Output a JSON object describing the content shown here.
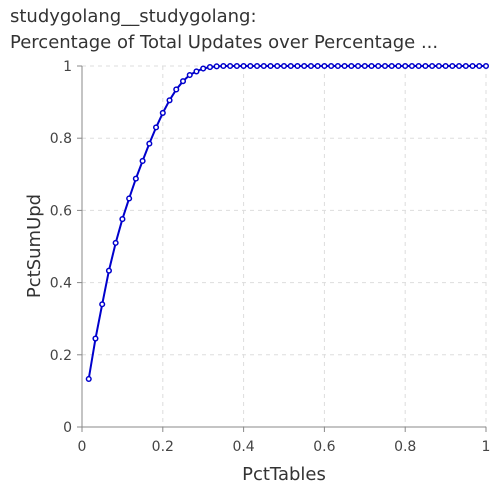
{
  "chart_data": {
    "type": "line",
    "title_line1": "studygolang__studygolang:",
    "title_line2": "Percentage of Total Updates over Percentage ...",
    "xlabel": "PctTables",
    "ylabel": "PctSumUpd",
    "xlim": [
      0,
      1
    ],
    "ylim": [
      0,
      1
    ],
    "xticks": [
      0,
      0.2,
      0.4,
      0.6,
      0.8,
      1
    ],
    "yticks": [
      0,
      0.2,
      0.4,
      0.6,
      0.8,
      1
    ],
    "xtick_labels": [
      "0",
      "0.2",
      "0.4",
      "0.6",
      "0.8",
      "1"
    ],
    "ytick_labels": [
      "0",
      "0.2",
      "0.4",
      "0.6",
      "0.8",
      "1"
    ],
    "grid": true,
    "line_color": "#0000cc",
    "series": [
      {
        "x": [
          0.0167,
          0.0333,
          0.05,
          0.0667,
          0.0833,
          0.1,
          0.1167,
          0.1333,
          0.15,
          0.1667,
          0.1833,
          0.2,
          0.2167,
          0.2333,
          0.25,
          0.2667,
          0.2833,
          0.3,
          0.3167,
          0.3333,
          0.35,
          0.3667,
          0.3833,
          0.4,
          0.4167,
          0.4333,
          0.45,
          0.4667,
          0.4833,
          0.5,
          0.5167,
          0.5333,
          0.55,
          0.5667,
          0.5833,
          0.6,
          0.6167,
          0.6333,
          0.65,
          0.6667,
          0.6833,
          0.7,
          0.7167,
          0.7333,
          0.75,
          0.7667,
          0.7833,
          0.8,
          0.8167,
          0.8333,
          0.85,
          0.8667,
          0.8833,
          0.9,
          0.9167,
          0.9333,
          0.95,
          0.9667,
          0.9833,
          1.0
        ],
        "y": [
          0.133,
          0.245,
          0.34,
          0.433,
          0.51,
          0.576,
          0.633,
          0.688,
          0.737,
          0.785,
          0.83,
          0.87,
          0.905,
          0.935,
          0.958,
          0.975,
          0.985,
          0.993,
          0.997,
          0.999,
          1.0,
          1.0,
          1.0,
          1.0,
          1.0,
          1.0,
          1.0,
          1.0,
          1.0,
          1.0,
          1.0,
          1.0,
          1.0,
          1.0,
          1.0,
          1.0,
          1.0,
          1.0,
          1.0,
          1.0,
          1.0,
          1.0,
          1.0,
          1.0,
          1.0,
          1.0,
          1.0,
          1.0,
          1.0,
          1.0,
          1.0,
          1.0,
          1.0,
          1.0,
          1.0,
          1.0,
          1.0,
          1.0,
          1.0,
          1.0
        ]
      }
    ]
  }
}
